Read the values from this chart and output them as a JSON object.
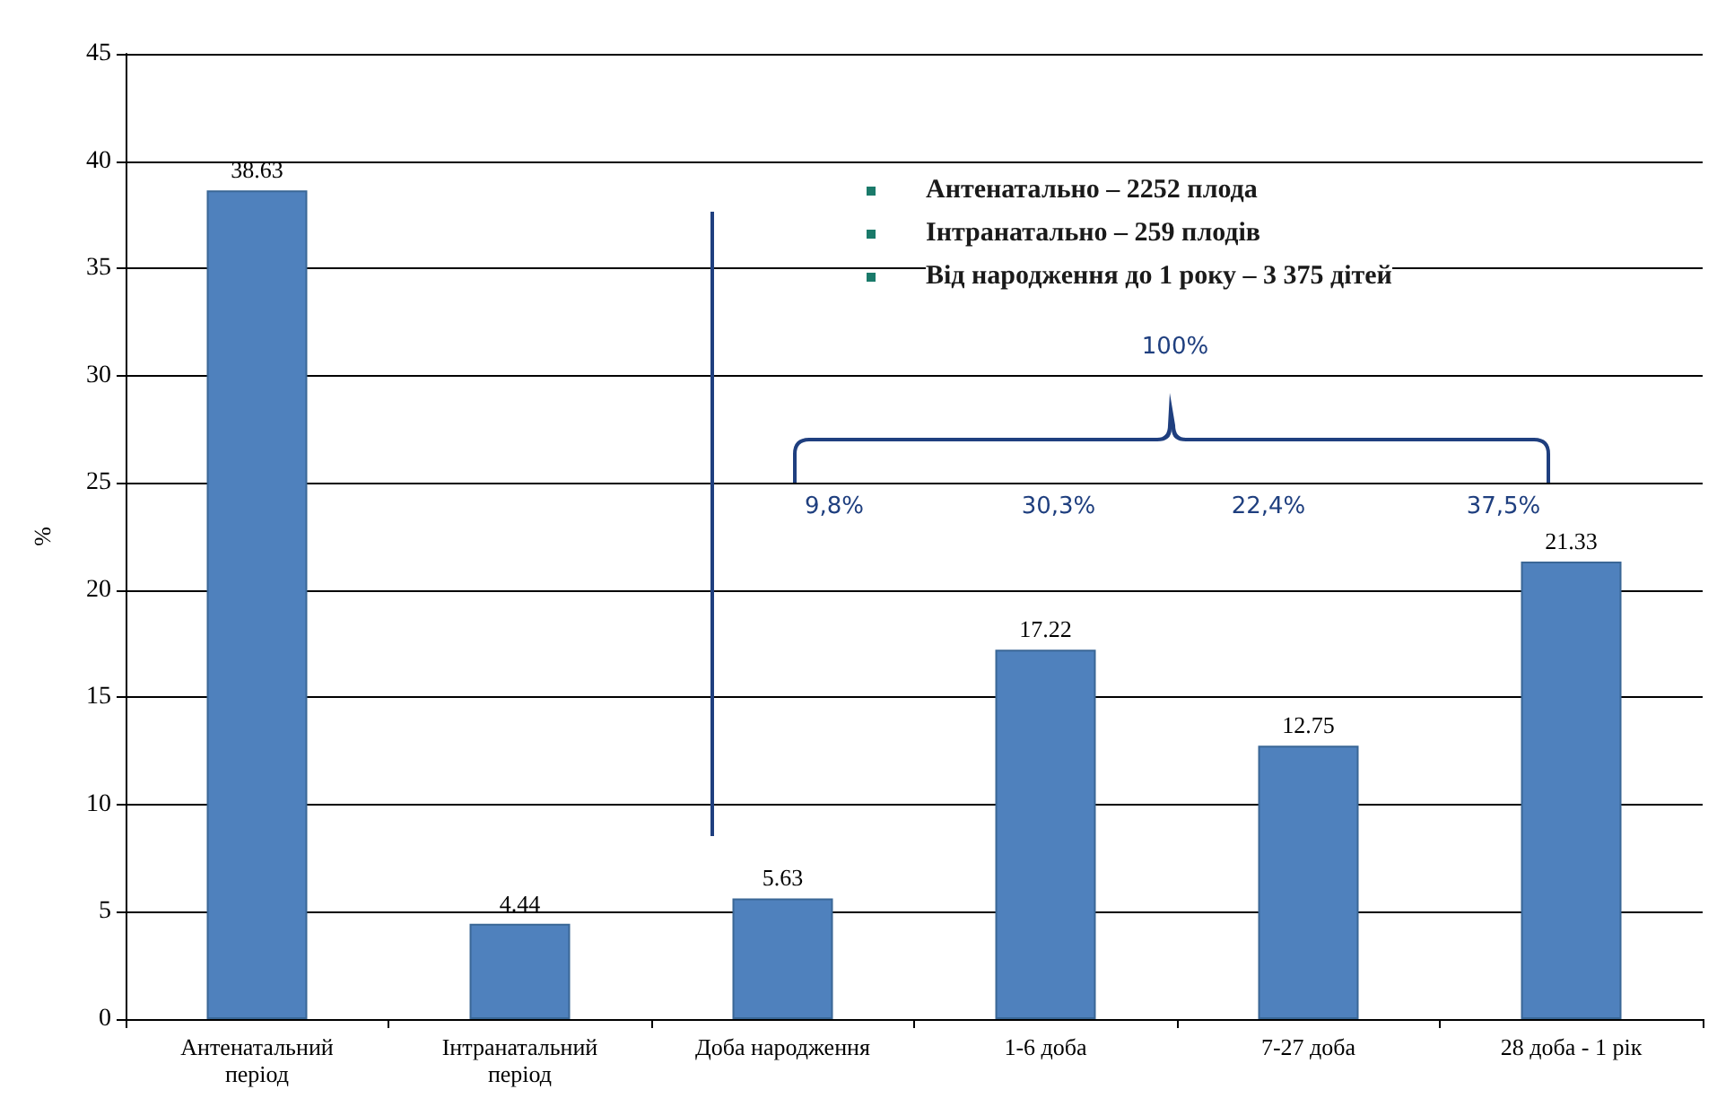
{
  "chart_data": {
    "type": "bar",
    "ylabel": "%",
    "categories": [
      "Антенатальний період",
      "Інтранатальний період",
      "Доба народження",
      "1-6 доба",
      "7-27 доба",
      "28 доба - 1 рік"
    ],
    "values": [
      38.63,
      4.44,
      5.63,
      17.22,
      12.75,
      21.33
    ],
    "color": "#4f81bd",
    "ylim": [
      0,
      45
    ],
    "yticks": [
      0,
      5,
      10,
      15,
      20,
      25,
      30,
      35,
      40,
      45
    ],
    "grid": "y",
    "data_labels": true,
    "annotations": [
      "Антенатально – 2252 плода",
      "Інтранатально – 259 плодів",
      "Від народження до 1 року – 3 375 дітей",
      "100%",
      "9,8%",
      "30,3%",
      "22,4%",
      "37,5%"
    ]
  }
}
